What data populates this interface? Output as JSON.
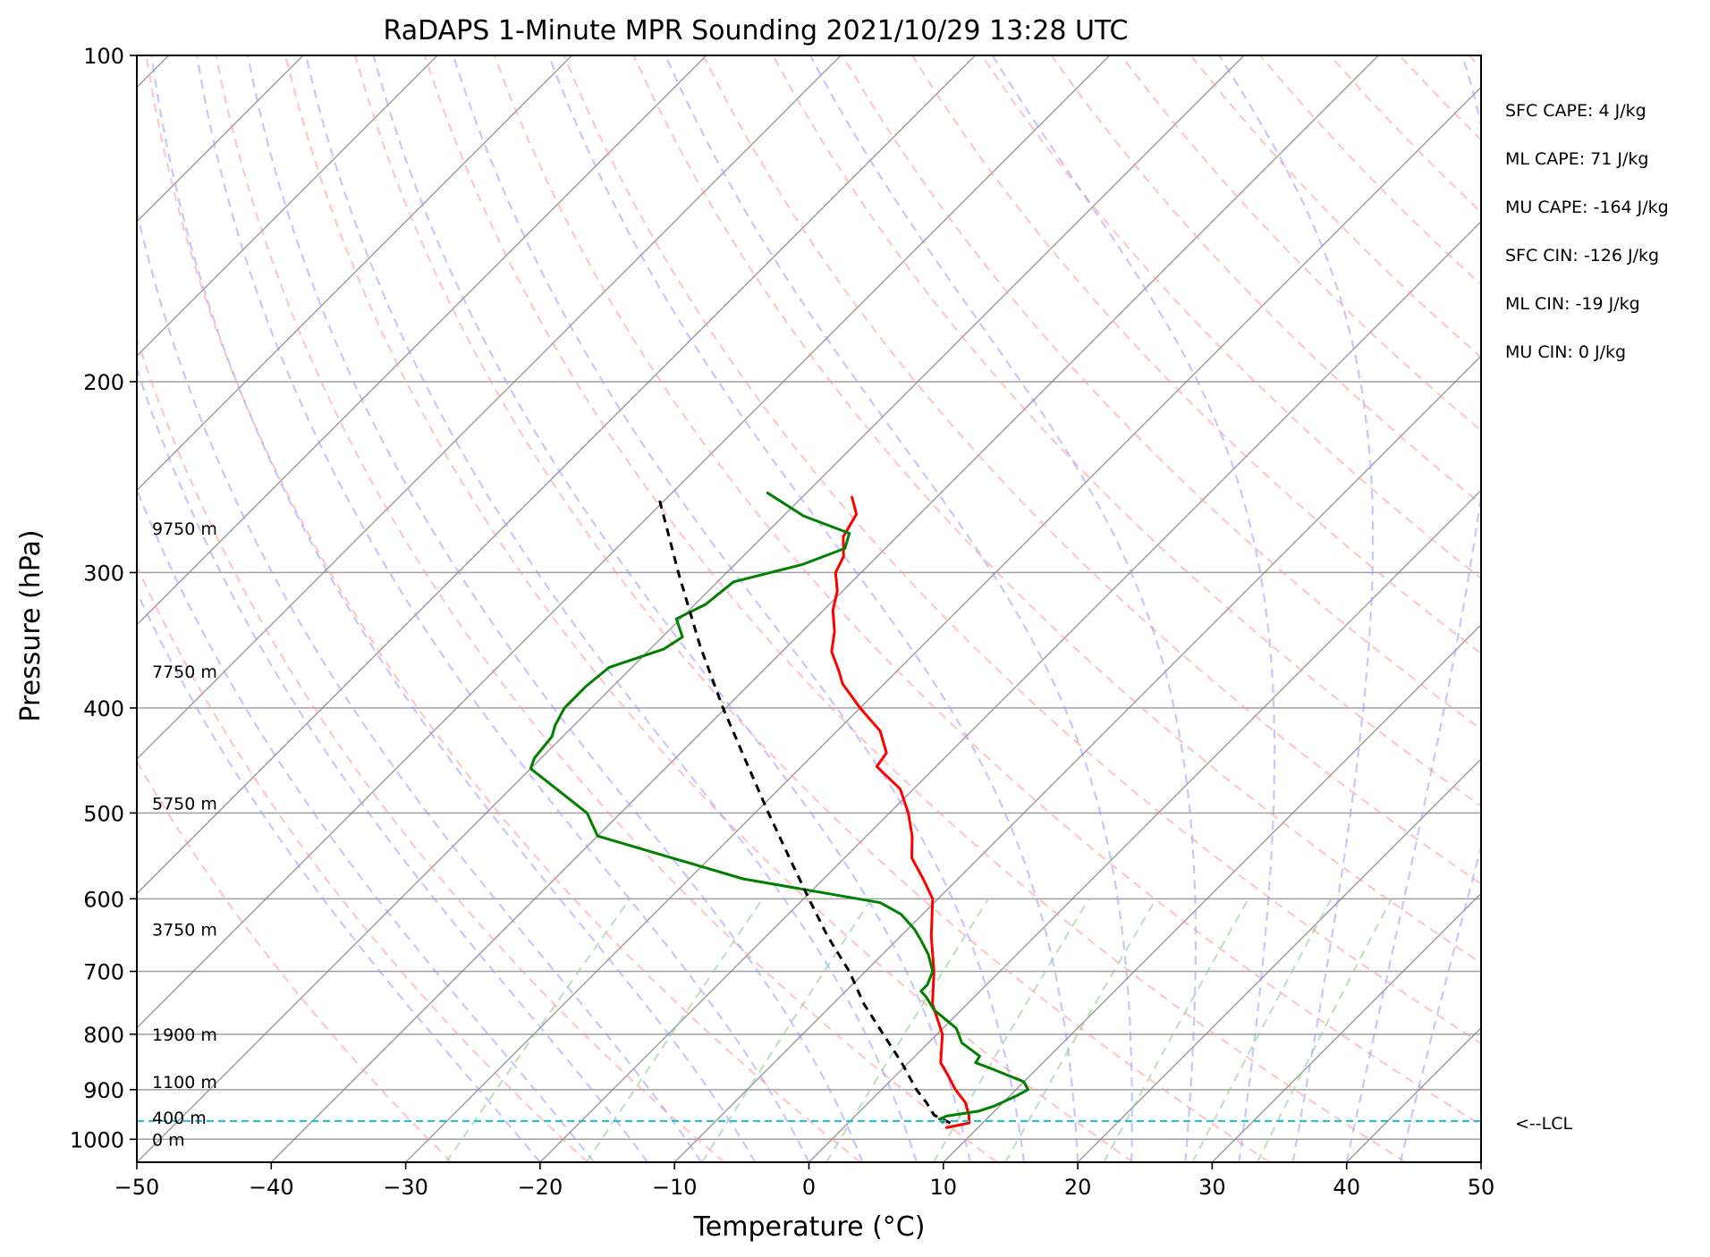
{
  "chart_data": {
    "type": "line",
    "title": "RaDAPS 1-Minute MPR Sounding 2021/10/29 13:28 UTC",
    "xlabel": "Temperature (°C)",
    "ylabel": "Pressure (hPa)",
    "xlim": [
      -50,
      50
    ],
    "ylim": [
      1050,
      100
    ],
    "y_scale": "log",
    "skew_t": true,
    "grid": true,
    "x_ticks": [
      -50,
      -40,
      -30,
      -20,
      -10,
      0,
      10,
      20,
      30,
      40,
      50
    ],
    "y_ticks": [
      100,
      200,
      300,
      400,
      500,
      600,
      700,
      800,
      900,
      1000
    ],
    "colors": {
      "temperature": "#ff0000",
      "dewpoint": "#008000",
      "parcel": "#000000",
      "dry_adiabats": "#ff9999",
      "moist_adiabats": "#9999ff",
      "mixing_ratio": "#99cc99",
      "lcl": "#17becf",
      "isotherms_isobars": "#808080"
    },
    "height_labels": [
      {
        "text": "0 m",
        "pressure": 1000
      },
      {
        "text": "400 m",
        "pressure": 955
      },
      {
        "text": "1100 m",
        "pressure": 885
      },
      {
        "text": "1900 m",
        "pressure": 800
      },
      {
        "text": "3750 m",
        "pressure": 640
      },
      {
        "text": "5750 m",
        "pressure": 490
      },
      {
        "text": "7750 m",
        "pressure": 370
      },
      {
        "text": "9750 m",
        "pressure": 273
      }
    ],
    "lcl": {
      "pressure": 962,
      "label": "<--LCL"
    },
    "indices": [
      "SFC CAPE: 4 J/kg",
      "ML CAPE: 71 J/kg",
      "MU CAPE: -164 J/kg",
      "SFC CIN: -126 J/kg",
      "ML CIN: -19 J/kg",
      "MU CIN: 0 J/kg"
    ],
    "series": [
      {
        "id": "temperature",
        "points": [
          [
            976,
            7.6
          ],
          [
            966,
            9.0
          ],
          [
            950,
            8.4
          ],
          [
            925,
            7.2
          ],
          [
            900,
            5.5
          ],
          [
            875,
            4.0
          ],
          [
            850,
            2.4
          ],
          [
            800,
            0.4
          ],
          [
            750,
            -2.6
          ],
          [
            700,
            -4.9
          ],
          [
            650,
            -7.7
          ],
          [
            600,
            -10.4
          ],
          [
            575,
            -12.6
          ],
          [
            550,
            -15.0
          ],
          [
            525,
            -16.6
          ],
          [
            500,
            -18.6
          ],
          [
            475,
            -21.0
          ],
          [
            453,
            -24.4
          ],
          [
            440,
            -24.7
          ],
          [
            420,
            -26.8
          ],
          [
            400,
            -30.0
          ],
          [
            380,
            -33.1
          ],
          [
            370,
            -34.3
          ],
          [
            355,
            -36.3
          ],
          [
            340,
            -37.6
          ],
          [
            325,
            -39.3
          ],
          [
            312,
            -40.4
          ],
          [
            300,
            -41.9
          ],
          [
            290,
            -42.5
          ],
          [
            278,
            -44.0
          ],
          [
            265,
            -44.7
          ],
          [
            255,
            -46.4
          ]
        ]
      },
      {
        "id": "dewpoint",
        "points": [
          [
            966,
            7.1
          ],
          [
            958,
            6.5
          ],
          [
            952,
            6.8
          ],
          [
            942,
            8.8
          ],
          [
            932,
            9.6
          ],
          [
            925,
            9.9
          ],
          [
            912,
            10.5
          ],
          [
            900,
            10.9
          ],
          [
            885,
            10.0
          ],
          [
            860,
            6.5
          ],
          [
            850,
            5.0
          ],
          [
            838,
            4.8
          ],
          [
            815,
            2.5
          ],
          [
            790,
            1.0
          ],
          [
            760,
            -2.0
          ],
          [
            740,
            -3.5
          ],
          [
            730,
            -4.4
          ],
          [
            720,
            -4.4
          ],
          [
            700,
            -5.0
          ],
          [
            675,
            -6.6
          ],
          [
            655,
            -8.2
          ],
          [
            640,
            -9.5
          ],
          [
            620,
            -11.6
          ],
          [
            605,
            -14.0
          ],
          [
            575,
            -26.0
          ],
          [
            525,
            -40.0
          ],
          [
            500,
            -42.5
          ],
          [
            455,
            -50.0
          ],
          [
            445,
            -50.5
          ],
          [
            425,
            -50.8
          ],
          [
            415,
            -51.4
          ],
          [
            400,
            -52.0
          ],
          [
            382,
            -52.0
          ],
          [
            367,
            -51.7
          ],
          [
            353,
            -49.0
          ],
          [
            344,
            -48.5
          ],
          [
            331,
            -50.3
          ],
          [
            321,
            -49.2
          ],
          [
            306,
            -48.8
          ],
          [
            295,
            -45.0
          ],
          [
            285,
            -43.0
          ],
          [
            276,
            -43.8
          ],
          [
            266,
            -48.5
          ],
          [
            253,
            -53.0
          ]
        ]
      },
      {
        "id": "parcel",
        "points": [
          [
            966,
            7.6
          ],
          [
            950,
            5.8
          ],
          [
            925,
            4.3
          ],
          [
            900,
            2.6
          ],
          [
            850,
            -0.5
          ],
          [
            800,
            -4.0
          ],
          [
            750,
            -7.7
          ],
          [
            700,
            -11.2
          ],
          [
            650,
            -15.4
          ],
          [
            600,
            -19.6
          ],
          [
            550,
            -24.1
          ],
          [
            500,
            -29.0
          ],
          [
            450,
            -34.3
          ],
          [
            400,
            -40.2
          ],
          [
            350,
            -46.6
          ],
          [
            300,
            -53.6
          ],
          [
            256,
            -60.6
          ]
        ]
      }
    ]
  }
}
